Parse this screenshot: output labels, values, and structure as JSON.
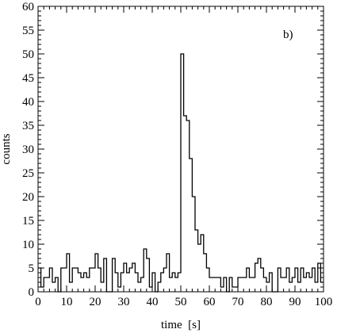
{
  "chart_data": {
    "type": "histogram",
    "title": "",
    "annotation": "b)",
    "xlabel": "time  [s]",
    "ylabel": "counts",
    "xlim": [
      0,
      100
    ],
    "ylim": [
      0,
      60
    ],
    "xticks": [
      0,
      10,
      20,
      30,
      40,
      50,
      60,
      70,
      80,
      90,
      100
    ],
    "yticks": [
      0,
      5,
      10,
      15,
      20,
      25,
      30,
      35,
      40,
      45,
      50,
      55,
      60
    ],
    "x_minor_step": 2,
    "y_minor_step": 1,
    "bin_width": 1,
    "bin_start": 0,
    "grid": false,
    "line_color": "#000000",
    "counts": [
      5,
      1,
      3,
      3,
      5,
      2,
      3,
      0,
      5,
      5,
      8,
      2,
      5,
      5,
      4,
      3,
      4,
      3,
      5,
      5,
      8,
      5,
      2,
      7,
      0,
      0,
      7,
      4,
      1,
      4,
      6,
      4,
      5,
      6,
      4,
      2,
      3,
      9,
      7,
      1,
      4,
      0,
      2,
      4,
      5,
      8,
      3,
      4,
      3,
      4,
      50,
      37,
      36,
      28,
      20,
      13,
      10,
      12,
      8,
      5,
      3,
      3,
      3,
      3,
      1,
      3,
      0,
      3,
      1,
      1,
      3,
      3,
      3,
      5,
      3,
      3,
      6,
      7,
      5,
      3,
      2,
      4,
      0,
      0,
      5,
      3,
      3,
      5,
      2,
      3,
      5,
      2,
      5,
      3,
      4,
      3,
      5,
      2,
      6,
      2
    ]
  }
}
